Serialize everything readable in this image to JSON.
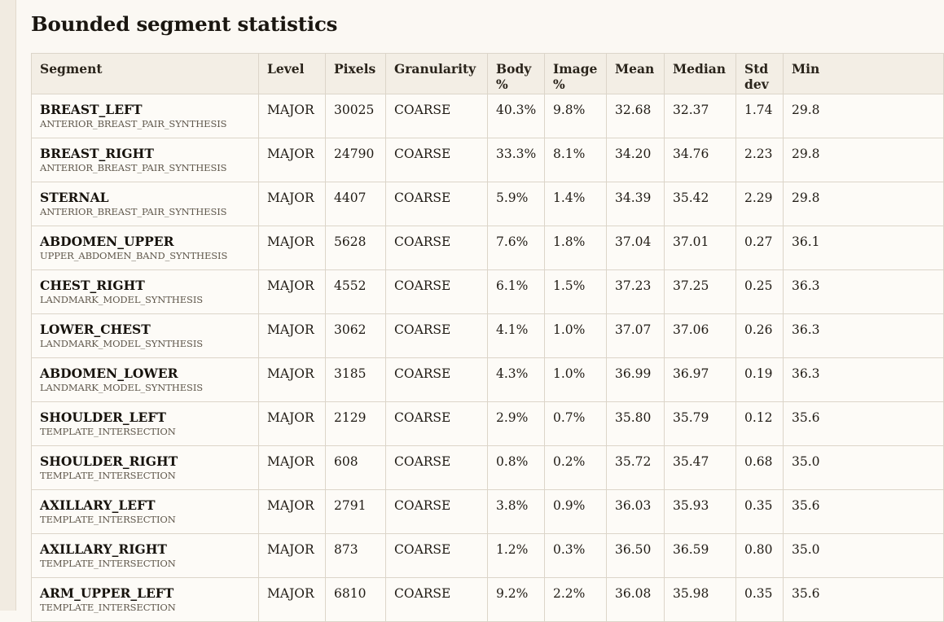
{
  "page": {
    "title": "Bounded segment statistics"
  },
  "table": {
    "columns": [
      "Segment",
      "Level",
      "Pixels",
      "Granularity",
      "Body %",
      "Image %",
      "Mean",
      "Median",
      "Std dev",
      "Min"
    ],
    "rows": [
      {
        "segment": "BREAST_LEFT",
        "method": "ANTERIOR_BREAST_PAIR_SYNTHESIS",
        "level": "MAJOR",
        "pixels": "30025",
        "granularity": "COARSE",
        "body_pct": "40.3%",
        "image_pct": "9.8%",
        "mean": "32.68",
        "median": "32.37",
        "std_dev": "1.74",
        "min": "29.8"
      },
      {
        "segment": "BREAST_RIGHT",
        "method": "ANTERIOR_BREAST_PAIR_SYNTHESIS",
        "level": "MAJOR",
        "pixels": "24790",
        "granularity": "COARSE",
        "body_pct": "33.3%",
        "image_pct": "8.1%",
        "mean": "34.20",
        "median": "34.76",
        "std_dev": "2.23",
        "min": "29.8"
      },
      {
        "segment": "STERNAL",
        "method": "ANTERIOR_BREAST_PAIR_SYNTHESIS",
        "level": "MAJOR",
        "pixels": "4407",
        "granularity": "COARSE",
        "body_pct": "5.9%",
        "image_pct": "1.4%",
        "mean": "34.39",
        "median": "35.42",
        "std_dev": "2.29",
        "min": "29.8"
      },
      {
        "segment": "ABDOMEN_UPPER",
        "method": "UPPER_ABDOMEN_BAND_SYNTHESIS",
        "level": "MAJOR",
        "pixels": "5628",
        "granularity": "COARSE",
        "body_pct": "7.6%",
        "image_pct": "1.8%",
        "mean": "37.04",
        "median": "37.01",
        "std_dev": "0.27",
        "min": "36.1"
      },
      {
        "segment": "CHEST_RIGHT",
        "method": "LANDMARK_MODEL_SYNTHESIS",
        "level": "MAJOR",
        "pixels": "4552",
        "granularity": "COARSE",
        "body_pct": "6.1%",
        "image_pct": "1.5%",
        "mean": "37.23",
        "median": "37.25",
        "std_dev": "0.25",
        "min": "36.3"
      },
      {
        "segment": "LOWER_CHEST",
        "method": "LANDMARK_MODEL_SYNTHESIS",
        "level": "MAJOR",
        "pixels": "3062",
        "granularity": "COARSE",
        "body_pct": "4.1%",
        "image_pct": "1.0%",
        "mean": "37.07",
        "median": "37.06",
        "std_dev": "0.26",
        "min": "36.3"
      },
      {
        "segment": "ABDOMEN_LOWER",
        "method": "LANDMARK_MODEL_SYNTHESIS",
        "level": "MAJOR",
        "pixels": "3185",
        "granularity": "COARSE",
        "body_pct": "4.3%",
        "image_pct": "1.0%",
        "mean": "36.99",
        "median": "36.97",
        "std_dev": "0.19",
        "min": "36.3"
      },
      {
        "segment": "SHOULDER_LEFT",
        "method": "TEMPLATE_INTERSECTION",
        "level": "MAJOR",
        "pixels": "2129",
        "granularity": "COARSE",
        "body_pct": "2.9%",
        "image_pct": "0.7%",
        "mean": "35.80",
        "median": "35.79",
        "std_dev": "0.12",
        "min": "35.6"
      },
      {
        "segment": "SHOULDER_RIGHT",
        "method": "TEMPLATE_INTERSECTION",
        "level": "MAJOR",
        "pixels": "608",
        "granularity": "COARSE",
        "body_pct": "0.8%",
        "image_pct": "0.2%",
        "mean": "35.72",
        "median": "35.47",
        "std_dev": "0.68",
        "min": "35.0"
      },
      {
        "segment": "AXILLARY_LEFT",
        "method": "TEMPLATE_INTERSECTION",
        "level": "MAJOR",
        "pixels": "2791",
        "granularity": "COARSE",
        "body_pct": "3.8%",
        "image_pct": "0.9%",
        "mean": "36.03",
        "median": "35.93",
        "std_dev": "0.35",
        "min": "35.6"
      },
      {
        "segment": "AXILLARY_RIGHT",
        "method": "TEMPLATE_INTERSECTION",
        "level": "MAJOR",
        "pixels": "873",
        "granularity": "COARSE",
        "body_pct": "1.2%",
        "image_pct": "0.3%",
        "mean": "36.50",
        "median": "36.59",
        "std_dev": "0.80",
        "min": "35.0"
      },
      {
        "segment": "ARM_UPPER_LEFT",
        "method": "TEMPLATE_INTERSECTION",
        "level": "MAJOR",
        "pixels": "6810",
        "granularity": "COARSE",
        "body_pct": "9.2%",
        "image_pct": "2.2%",
        "mean": "36.08",
        "median": "35.98",
        "std_dev": "0.35",
        "min": "35.6"
      }
    ]
  }
}
